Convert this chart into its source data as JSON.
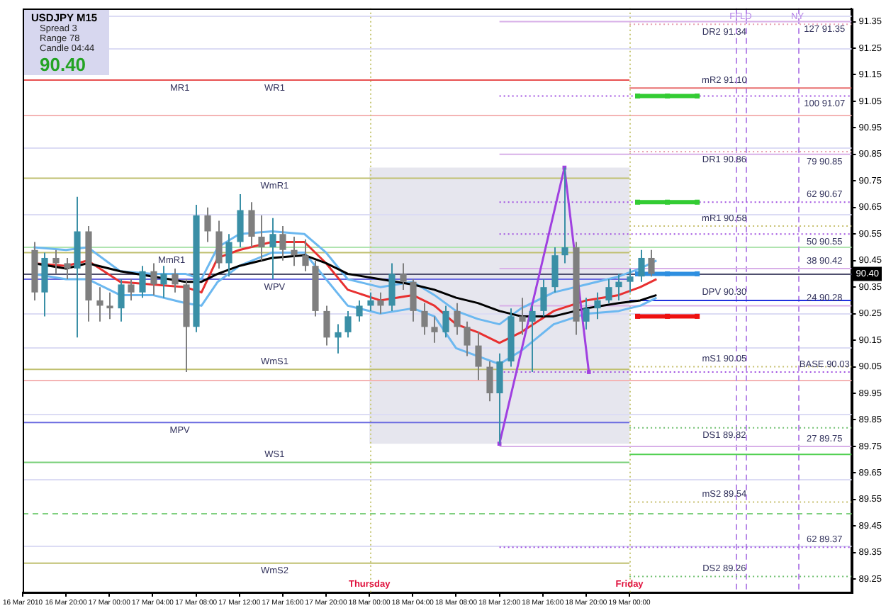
{
  "chart_data": {
    "type": "candlestick",
    "title": "USDJPY M15",
    "annotations": [
      "Spread 3",
      "Range 78",
      "Candle 04:44",
      "90.40",
      {
        "text": "MR1",
        "x": "2010-03-17T06:30",
        "y": 91.13
      },
      {
        "text": "WR1",
        "x": "2010-03-17T15:15",
        "y": 91.13
      },
      {
        "text": "WmR1",
        "x": "2010-03-17T15:15",
        "y": 90.76
      },
      {
        "text": "MmR1",
        "x": "2010-03-17T05:45",
        "y": 90.48
      },
      {
        "text": "WPV",
        "x": "2010-03-17T15:15",
        "y": 90.38
      },
      {
        "text": "WmS1",
        "x": "2010-03-17T15:15",
        "y": 90.04
      },
      {
        "text": "MPV",
        "x": "2010-03-17T06:30",
        "y": 89.84
      },
      {
        "text": "WS1",
        "x": "2010-03-17T15:15",
        "y": 89.69
      },
      {
        "text": "WmS2",
        "x": "2010-03-17T15:15",
        "y": 89.31
      },
      {
        "text": "DR2 91.34",
        "x": "2010-03-19T08:45",
        "y": 91.34
      },
      {
        "text": "mR2 91.10",
        "x": "2010-03-19T08:45",
        "y": 91.1
      },
      {
        "text": "DR1 90.86",
        "x": "2010-03-19T08:45",
        "y": 90.86
      },
      {
        "text": "mR1 90.58",
        "x": "2010-03-19T08:45",
        "y": 90.58
      },
      {
        "text": "DPV 90.30",
        "x": "2010-03-19T08:45",
        "y": 90.3
      },
      {
        "text": "mS1 90.05",
        "x": "2010-03-19T08:45",
        "y": 90.05
      },
      {
        "text": "DS1 89.82",
        "x": "2010-03-19T08:45",
        "y": 89.82
      },
      {
        "text": "mS2 89.54",
        "x": "2010-03-19T08:45",
        "y": 89.54
      },
      {
        "text": "DS2 89.26",
        "x": "2010-03-19T08:45",
        "y": 89.26
      },
      {
        "text": "127 91.35",
        "x": "2010-03-19T18:00",
        "y": 91.35
      },
      {
        "text": "100 91.07",
        "x": "2010-03-19T18:00",
        "y": 91.07
      },
      {
        "text": "79 90.85",
        "x": "2010-03-19T18:00",
        "y": 90.85
      },
      {
        "text": "62 90.67",
        "x": "2010-03-19T18:00",
        "y": 90.67
      },
      {
        "text": "50 90.55",
        "x": "2010-03-19T18:00",
        "y": 90.55
      },
      {
        "text": "38 90.42",
        "x": "2010-03-19T18:00",
        "y": 90.42
      },
      {
        "text": "24 90.28",
        "x": "2010-03-19T18:00",
        "y": 90.28
      },
      {
        "text": "BASE 90.03",
        "x": "2010-03-19T18:00",
        "y": 90.03
      },
      {
        "text": "27 89.75",
        "x": "2010-03-19T18:00",
        "y": 89.75
      },
      {
        "text": "62 89.37",
        "x": "2010-03-19T18:00",
        "y": 89.37
      }
    ],
    "x": [
      "2010-03-16T17:00",
      "2010-03-16T18:00",
      "2010-03-16T19:00",
      "2010-03-16T20:00",
      "2010-03-16T21:00",
      "2010-03-16T22:00",
      "2010-03-16T23:00",
      "2010-03-17T00:00",
      "2010-03-17T01:00",
      "2010-03-17T02:00",
      "2010-03-17T03:00",
      "2010-03-17T04:00",
      "2010-03-17T05:00",
      "2010-03-17T06:00",
      "2010-03-17T07:00",
      "2010-03-17T08:00",
      "2010-03-17T09:00",
      "2010-03-17T10:00",
      "2010-03-17T11:00",
      "2010-03-17T12:00",
      "2010-03-17T13:00",
      "2010-03-17T14:00",
      "2010-03-17T15:00",
      "2010-03-17T16:00",
      "2010-03-17T17:00",
      "2010-03-17T18:00",
      "2010-03-17T19:00",
      "2010-03-17T20:00",
      "2010-03-17T21:00",
      "2010-03-17T22:00",
      "2010-03-17T23:00",
      "2010-03-18T00:00",
      "2010-03-18T01:00",
      "2010-03-18T02:00",
      "2010-03-18T03:00",
      "2010-03-18T04:00",
      "2010-03-18T05:00",
      "2010-03-18T06:00",
      "2010-03-18T07:00",
      "2010-03-18T08:00",
      "2010-03-18T09:00",
      "2010-03-18T10:00",
      "2010-03-18T11:00",
      "2010-03-18T12:00",
      "2010-03-18T13:00",
      "2010-03-18T14:00",
      "2010-03-18T15:00",
      "2010-03-18T16:00",
      "2010-03-18T17:00",
      "2010-03-18T18:00",
      "2010-03-18T19:00",
      "2010-03-18T20:00",
      "2010-03-18T21:00",
      "2010-03-18T22:00",
      "2010-03-18T23:00",
      "2010-03-19T00:00",
      "2010-03-19T01:00",
      "2010-03-19T02:00"
    ],
    "ohlc": [
      [
        90.49,
        90.52,
        90.3,
        90.33
      ],
      [
        90.33,
        90.48,
        90.24,
        90.46
      ],
      [
        90.46,
        90.49,
        90.4,
        90.44
      ],
      [
        90.44,
        90.46,
        90.38,
        90.42
      ],
      [
        90.42,
        90.69,
        90.16,
        90.56
      ],
      [
        90.56,
        90.58,
        90.22,
        90.3
      ],
      [
        90.3,
        90.35,
        90.22,
        90.28
      ],
      [
        90.28,
        90.33,
        90.23,
        90.27
      ],
      [
        90.27,
        90.38,
        90.22,
        90.36
      ],
      [
        90.36,
        90.38,
        90.3,
        90.33
      ],
      [
        90.33,
        90.43,
        90.31,
        90.41
      ],
      [
        90.41,
        90.44,
        90.32,
        90.36
      ],
      [
        90.36,
        90.43,
        90.31,
        90.4
      ],
      [
        90.4,
        90.42,
        90.33,
        90.36
      ],
      [
        90.36,
        90.38,
        90.03,
        90.2
      ],
      [
        90.2,
        90.66,
        90.18,
        90.62
      ],
      [
        90.62,
        90.65,
        90.52,
        90.56
      ],
      [
        90.56,
        90.6,
        90.42,
        90.44
      ],
      [
        90.44,
        90.55,
        90.39,
        90.52
      ],
      [
        90.52,
        90.7,
        90.5,
        90.64
      ],
      [
        90.64,
        90.67,
        90.5,
        90.54
      ],
      [
        90.54,
        90.62,
        90.45,
        90.5
      ],
      [
        90.5,
        90.61,
        90.38,
        90.55
      ],
      [
        90.55,
        90.58,
        90.45,
        90.49
      ],
      [
        90.49,
        90.54,
        90.43,
        90.47
      ],
      [
        90.47,
        90.53,
        90.41,
        90.43
      ],
      [
        90.43,
        90.45,
        90.24,
        90.26
      ],
      [
        90.26,
        90.28,
        90.13,
        90.16
      ],
      [
        90.16,
        90.21,
        90.1,
        90.18
      ],
      [
        90.18,
        90.26,
        90.16,
        90.24
      ],
      [
        90.24,
        90.3,
        90.22,
        90.28
      ],
      [
        90.28,
        90.33,
        90.26,
        90.3
      ],
      [
        90.3,
        90.33,
        90.25,
        90.28
      ],
      [
        90.28,
        90.44,
        90.26,
        90.4
      ],
      [
        90.4,
        90.44,
        90.34,
        90.37
      ],
      [
        90.37,
        90.38,
        90.22,
        90.26
      ],
      [
        90.26,
        90.29,
        90.17,
        90.2
      ],
      [
        90.2,
        90.24,
        90.14,
        90.18
      ],
      [
        90.18,
        90.28,
        90.16,
        90.26
      ],
      [
        90.26,
        90.29,
        90.17,
        90.2
      ],
      [
        90.2,
        90.22,
        90.09,
        90.13
      ],
      [
        90.13,
        90.18,
        90.0,
        90.05
      ],
      [
        90.05,
        90.07,
        89.92,
        89.95
      ],
      [
        89.95,
        90.1,
        89.76,
        90.07
      ],
      [
        90.07,
        90.27,
        90.05,
        90.24
      ],
      [
        90.24,
        90.31,
        90.17,
        90.22
      ],
      [
        90.22,
        90.28,
        90.03,
        90.26
      ],
      [
        90.26,
        90.38,
        90.24,
        90.35
      ],
      [
        90.35,
        90.5,
        90.33,
        90.47
      ],
      [
        90.47,
        90.8,
        90.44,
        90.5
      ],
      [
        90.5,
        90.52,
        90.17,
        90.22
      ],
      [
        90.22,
        90.31,
        90.19,
        90.27
      ],
      [
        90.27,
        90.33,
        90.23,
        90.3
      ],
      [
        90.3,
        90.38,
        90.29,
        90.35
      ],
      [
        90.35,
        90.4,
        90.3,
        90.37
      ],
      [
        90.37,
        90.42,
        90.33,
        90.39
      ],
      [
        90.39,
        90.49,
        90.37,
        90.46
      ],
      [
        90.46,
        90.49,
        90.39,
        90.4
      ]
    ],
    "colors": [
      "#7f7f7f",
      "#3a8fa6",
      "#7f7f7f",
      "#7f7f7f",
      "#3a8fa6",
      "#7f7f7f",
      "#7f7f7f",
      "#7f7f7f",
      "#3a8fa6",
      "#7f7f7f",
      "#3a8fa6",
      "#7f7f7f",
      "#3a8fa6",
      "#7f7f7f",
      "#7f7f7f",
      "#3a8fa6",
      "#7f7f7f",
      "#7f7f7f",
      "#3a8fa6",
      "#3a8fa6",
      "#7f7f7f",
      "#7f7f7f",
      "#3a8fa6",
      "#7f7f7f",
      "#7f7f7f",
      "#7f7f7f",
      "#7f7f7f",
      "#7f7f7f",
      "#3a8fa6",
      "#3a8fa6",
      "#3a8fa6",
      "#3a8fa6",
      "#7f7f7f",
      "#3a8fa6",
      "#7f7f7f",
      "#7f7f7f",
      "#7f7f7f",
      "#7f7f7f",
      "#3a8fa6",
      "#7f7f7f",
      "#7f7f7f",
      "#7f7f7f",
      "#7f7f7f",
      "#3a8fa6",
      "#3a8fa6",
      "#7f7f7f",
      "#3a8fa6",
      "#3a8fa6",
      "#3a8fa6",
      "#3a8fa6",
      "#7f7f7f",
      "#3a8fa6",
      "#3a8fa6",
      "#3a8fa6",
      "#3a8fa6",
      "#3a8fa6",
      "#3a8fa6",
      "#7f7f7f"
    ],
    "series": [
      {
        "type": "line",
        "color": "#e85050",
        "x": [
          "2010-03-16T16:00",
          "2010-03-19T00:00"
        ],
        "values": [
          91.13,
          91.13
        ]
      },
      {
        "type": "line",
        "color": "#c0c070",
        "x": [
          "2010-03-16T16:00",
          "2010-03-19T00:00"
        ],
        "values": [
          90.76,
          90.76
        ]
      },
      {
        "type": "line",
        "color": "#c0c070",
        "x": [
          "2010-03-16T16:00",
          "2010-03-19T00:00"
        ],
        "values": [
          90.48,
          90.48
        ]
      },
      {
        "type": "line",
        "color": "#6a6ae0",
        "x": [
          "2010-03-16T16:00",
          "2010-03-19T00:00"
        ],
        "values": [
          90.38,
          90.38
        ]
      },
      {
        "type": "line",
        "color": "#c0c070",
        "x": [
          "2010-03-16T16:00",
          "2010-03-19T00:00"
        ],
        "values": [
          90.04,
          90.04
        ]
      },
      {
        "type": "line",
        "color": "#6a6ae0",
        "x": [
          "2010-03-16T16:00",
          "2010-03-19T00:00"
        ],
        "values": [
          89.84,
          89.84
        ]
      },
      {
        "type": "line",
        "color": "#7ad07a",
        "x": [
          "2010-03-16T16:00",
          "2010-03-19T00:00"
        ],
        "values": [
          89.69,
          89.69
        ]
      },
      {
        "type": "line",
        "color": "#c0c070",
        "x": [
          "2010-03-16T16:00",
          "2010-03-19T00:00"
        ],
        "values": [
          89.31,
          89.31
        ]
      },
      {
        "type": "line",
        "color": "#e8a0b0",
        "line_style": "dotted",
        "x": [
          "2010-03-19T00:00",
          "2010-03-19T20:30"
        ],
        "values": [
          91.34,
          91.34
        ]
      },
      {
        "type": "line",
        "color": "#e87070",
        "x": [
          "2010-03-19T00:00",
          "2010-03-19T20:30"
        ],
        "values": [
          91.1,
          91.1
        ]
      },
      {
        "type": "line",
        "color": "#e8a0b0",
        "line_style": "dotted",
        "x": [
          "2010-03-19T00:00",
          "2010-03-19T20:30"
        ],
        "values": [
          90.86,
          90.86
        ]
      },
      {
        "type": "line",
        "color": "#c8c070",
        "line_style": "dotted",
        "x": [
          "2010-03-19T00:00",
          "2010-03-19T20:30"
        ],
        "values": [
          90.58,
          90.58
        ]
      },
      {
        "type": "line",
        "color": "#2030e0",
        "x": [
          "2010-03-19T00:00",
          "2010-03-19T20:30"
        ],
        "values": [
          90.3,
          90.3
        ]
      },
      {
        "type": "line",
        "color": "#c8c070",
        "line_style": "dotted",
        "x": [
          "2010-03-19T00:00",
          "2010-03-19T20:30"
        ],
        "values": [
          90.05,
          90.05
        ]
      },
      {
        "type": "line",
        "color": "#70c070",
        "line_style": "dotted",
        "x": [
          "2010-03-19T00:00",
          "2010-03-19T20:30"
        ],
        "values": [
          89.82,
          89.82
        ]
      },
      {
        "type": "line",
        "color": "#50d050",
        "x": [
          "2010-03-19T00:00",
          "2010-03-19T20:30"
        ],
        "values": [
          89.72,
          89.72
        ]
      },
      {
        "type": "line",
        "color": "#c8c070",
        "line_style": "dotted",
        "x": [
          "2010-03-19T00:00",
          "2010-03-19T20:30"
        ],
        "values": [
          89.54,
          89.54
        ]
      },
      {
        "type": "line",
        "color": "#70c070",
        "line_style": "dotted",
        "x": [
          "2010-03-19T00:00",
          "2010-03-19T20:30"
        ],
        "values": [
          89.26,
          89.26
        ]
      },
      {
        "type": "line",
        "color": "#d8b0e8",
        "x": [
          "2010-03-18T12:00",
          "2010-03-19T20:30"
        ],
        "values": [
          91.35,
          91.35
        ]
      },
      {
        "type": "line",
        "color": "#a050e0",
        "line_style": "dotted",
        "x": [
          "2010-03-18T12:00",
          "2010-03-19T20:30"
        ],
        "values": [
          91.07,
          91.07
        ]
      },
      {
        "type": "line",
        "color": "#d8b0e8",
        "x": [
          "2010-03-18T12:00",
          "2010-03-19T20:30"
        ],
        "values": [
          90.85,
          90.85
        ]
      },
      {
        "type": "line",
        "color": "#a050e0",
        "line_style": "dotted",
        "x": [
          "2010-03-18T12:00",
          "2010-03-19T20:30"
        ],
        "values": [
          90.67,
          90.67
        ]
      },
      {
        "type": "line",
        "color": "#a050e0",
        "line_style": "dotted",
        "x": [
          "2010-03-18T12:00",
          "2010-03-19T20:30"
        ],
        "values": [
          90.55,
          90.55
        ]
      },
      {
        "type": "line",
        "color": "#d8b0e8",
        "x": [
          "2010-03-18T12:00",
          "2010-03-19T20:30"
        ],
        "values": [
          90.42,
          90.42
        ]
      },
      {
        "type": "line",
        "color": "#d8b0e8",
        "x": [
          "2010-03-18T12:00",
          "2010-03-19T20:30"
        ],
        "values": [
          90.28,
          90.28
        ]
      },
      {
        "type": "line",
        "color": "#a050e0",
        "line_style": "dotted",
        "x": [
          "2010-03-18T12:00",
          "2010-03-19T20:30"
        ],
        "values": [
          90.03,
          90.03
        ]
      },
      {
        "type": "line",
        "color": "#d8b0e8",
        "x": [
          "2010-03-18T12:00",
          "2010-03-19T20:30"
        ],
        "values": [
          89.75,
          89.75
        ]
      },
      {
        "type": "line",
        "color": "#a050e0",
        "line_style": "dotted",
        "x": [
          "2010-03-18T12:00",
          "2010-03-19T20:30"
        ],
        "values": [
          89.37,
          89.37
        ]
      },
      {
        "type": "line",
        "color": "#6cb8f0",
        "x": [
          "2010-03-16T17:00",
          "2010-03-16T20:00",
          "2010-03-16T22:00",
          "2010-03-17T01:00",
          "2010-03-17T04:00",
          "2010-03-17T07:00",
          "2010-03-17T08:30",
          "2010-03-17T10:00",
          "2010-03-17T12:00",
          "2010-03-17T15:00",
          "2010-03-17T18:00",
          "2010-03-17T20:00",
          "2010-03-17T22:00",
          "2010-03-18T01:00",
          "2010-03-18T04:00",
          "2010-03-18T06:00",
          "2010-03-18T08:00",
          "2010-03-18T10:00",
          "2010-03-18T12:00",
          "2010-03-18T14:00",
          "2010-03-18T17:00",
          "2010-03-18T20:00",
          "2010-03-18T23:00",
          "2010-03-19T01:00",
          "2010-03-19T02:30"
        ],
        "values": [
          90.5,
          90.49,
          90.5,
          90.41,
          90.4,
          90.4,
          90.38,
          90.5,
          90.55,
          90.56,
          90.55,
          90.48,
          90.38,
          90.35,
          90.37,
          90.32,
          90.26,
          90.23,
          90.21,
          90.27,
          90.33,
          90.36,
          90.39,
          90.42,
          90.45
        ]
      },
      {
        "type": "line",
        "color": "#6cb8f0",
        "x": [
          "2010-03-16T17:00",
          "2010-03-16T20:00",
          "2010-03-16T22:00",
          "2010-03-17T01:00",
          "2010-03-17T04:00",
          "2010-03-17T07:00",
          "2010-03-17T08:30",
          "2010-03-17T10:00",
          "2010-03-17T12:00",
          "2010-03-17T15:00",
          "2010-03-17T18:00",
          "2010-03-17T20:00",
          "2010-03-17T22:00",
          "2010-03-18T01:00",
          "2010-03-18T04:00",
          "2010-03-18T06:00",
          "2010-03-18T08:00",
          "2010-03-18T10:00",
          "2010-03-18T12:00",
          "2010-03-18T14:00",
          "2010-03-18T17:00",
          "2010-03-18T20:00",
          "2010-03-18T23:00",
          "2010-03-19T01:00",
          "2010-03-19T02:30"
        ],
        "values": [
          90.4,
          90.38,
          90.38,
          90.32,
          90.32,
          90.29,
          90.28,
          90.37,
          90.43,
          90.48,
          90.48,
          90.38,
          90.28,
          90.25,
          90.27,
          90.24,
          90.12,
          90.09,
          90.06,
          90.11,
          90.21,
          90.25,
          90.26,
          90.28,
          90.31
        ]
      },
      {
        "type": "line",
        "color": "#e83030",
        "x": [
          "2010-03-16T17:00",
          "2010-03-16T20:00",
          "2010-03-16T22:00",
          "2010-03-17T01:00",
          "2010-03-17T04:00",
          "2010-03-17T07:00",
          "2010-03-17T08:30",
          "2010-03-17T10:00",
          "2010-03-17T12:00",
          "2010-03-17T15:00",
          "2010-03-17T18:00",
          "2010-03-17T20:00",
          "2010-03-17T22:00",
          "2010-03-18T01:00",
          "2010-03-18T04:00",
          "2010-03-18T06:00",
          "2010-03-18T08:00",
          "2010-03-18T10:00",
          "2010-03-18T12:00",
          "2010-03-18T14:00",
          "2010-03-18T17:00",
          "2010-03-18T20:00",
          "2010-03-18T23:00",
          "2010-03-19T01:00",
          "2010-03-19T02:30"
        ],
        "values": [
          90.44,
          90.43,
          90.45,
          90.37,
          90.36,
          90.35,
          90.33,
          90.46,
          90.49,
          90.52,
          90.52,
          90.44,
          90.34,
          90.3,
          90.32,
          90.28,
          90.21,
          90.18,
          90.14,
          90.18,
          90.26,
          90.3,
          90.32,
          90.35,
          90.38
        ]
      },
      {
        "type": "line",
        "color": "#000000",
        "x": [
          "2010-03-16T17:00",
          "2010-03-16T20:00",
          "2010-03-16T22:00",
          "2010-03-17T01:00",
          "2010-03-17T04:00",
          "2010-03-17T07:00",
          "2010-03-17T08:30",
          "2010-03-17T10:00",
          "2010-03-17T12:00",
          "2010-03-17T15:00",
          "2010-03-17T18:00",
          "2010-03-17T20:00",
          "2010-03-17T22:00",
          "2010-03-18T01:00",
          "2010-03-18T04:00",
          "2010-03-18T06:00",
          "2010-03-18T08:00",
          "2010-03-18T10:00",
          "2010-03-18T12:00",
          "2010-03-18T14:00",
          "2010-03-18T17:00",
          "2010-03-18T20:00",
          "2010-03-18T23:00",
          "2010-03-19T01:00",
          "2010-03-19T02:30"
        ],
        "values": [
          90.44,
          90.42,
          90.44,
          90.41,
          90.39,
          90.37,
          90.37,
          90.4,
          90.43,
          90.46,
          90.47,
          90.44,
          90.4,
          90.38,
          90.36,
          90.34,
          90.31,
          90.29,
          90.26,
          90.24,
          90.24,
          90.27,
          90.29,
          90.3,
          90.32
        ]
      },
      {
        "type": "line",
        "color": "#a040e0",
        "marker": "square",
        "x": [
          "2010-03-18T12:00",
          "2010-03-18T18:00",
          "2010-03-18T20:15"
        ],
        "values": [
          89.76,
          90.8,
          90.03
        ]
      },
      {
        "type": "line",
        "color": "#33cc33",
        "marker": "square",
        "x": [
          "2010-03-19T00:45",
          "2010-03-19T03:30",
          "2010-03-19T06:15"
        ],
        "values": [
          91.07,
          91.07,
          91.07
        ]
      },
      {
        "type": "line",
        "color": "#33cc33",
        "marker": "square",
        "x": [
          "2010-03-19T00:45",
          "2010-03-19T03:30",
          "2010-03-19T06:15"
        ],
        "values": [
          90.67,
          90.67,
          90.67
        ]
      },
      {
        "type": "line",
        "color": "#2e8fe0",
        "marker": "square",
        "x": [
          "2010-03-19T00:45",
          "2010-03-19T03:30",
          "2010-03-19T06:15"
        ],
        "values": [
          90.4,
          90.4,
          90.4
        ]
      },
      {
        "type": "line",
        "color": "#ee1111",
        "marker": "square",
        "x": [
          "2010-03-19T00:45",
          "2010-03-19T03:30",
          "2010-03-19T06:15"
        ],
        "values": [
          90.24,
          90.24,
          90.24
        ]
      }
    ],
    "xlim": [
      "2010-03-16T16:00",
      "2010-03-19T20:30"
    ],
    "xticks": [
      {
        "value": "2010-03-16T16:00",
        "label": "16 Mar 2010"
      },
      {
        "value": "2010-03-16T20:00",
        "label": "16 Mar 20:00"
      },
      {
        "value": "2010-03-17T00:00",
        "label": "17 Mar 00:00"
      },
      {
        "value": "2010-03-17T04:00",
        "label": "17 Mar 04:00"
      },
      {
        "value": "2010-03-17T08:00",
        "label": "17 Mar 08:00"
      },
      {
        "value": "2010-03-17T12:00",
        "label": "17 Mar 12:00"
      },
      {
        "value": "2010-03-17T16:00",
        "label": "17 Mar 16:00"
      },
      {
        "value": "2010-03-17T20:00",
        "label": "17 Mar 20:00"
      },
      {
        "value": "2010-03-18T00:00",
        "label": "18 Mar 00:00"
      },
      {
        "value": "2010-03-18T04:00",
        "label": "18 Mar 04:00"
      },
      {
        "value": "2010-03-18T08:00",
        "label": "18 Mar 08:00"
      },
      {
        "value": "2010-03-18T12:00",
        "label": "18 Mar 12:00"
      },
      {
        "value": "2010-03-18T16:00",
        "label": "18 Mar 16:00"
      },
      {
        "value": "2010-03-18T20:00",
        "label": "18 Mar 20:00"
      },
      {
        "value": "2010-03-19T00:00",
        "label": "19 Mar 00:00"
      }
    ],
    "ylim": [
      89.2,
      91.4
    ],
    "yticks": [
      89.25,
      89.35,
      89.45,
      89.55,
      89.65,
      89.75,
      89.85,
      89.95,
      90.05,
      90.15,
      90.25,
      90.35,
      90.45,
      90.55,
      90.65,
      90.75,
      90.85,
      90.95,
      91.05,
      91.15,
      91.25,
      91.35
    ],
    "ref_lines": [
      {
        "axis": "y",
        "value": 91.375,
        "color": "#dcdcf4"
      },
      {
        "axis": "y",
        "value": 91.25,
        "color": "#dcdcf4"
      },
      {
        "axis": "y",
        "value": 91.0,
        "color": "#f4b4b4"
      },
      {
        "axis": "y",
        "value": 90.875,
        "color": "#dcdcf4"
      },
      {
        "axis": "y",
        "value": 90.625,
        "color": "#dcdcf4"
      },
      {
        "axis": "y",
        "value": 90.5,
        "color": "#b0e4b0"
      },
      {
        "axis": "y",
        "value": 90.25,
        "color": "#dcdcf4"
      },
      {
        "axis": "y",
        "value": 90.125,
        "color": "#dcdcf4"
      },
      {
        "axis": "y",
        "value": 90.0,
        "color": "#f4b4b4"
      },
      {
        "axis": "y",
        "value": 89.875,
        "color": "#dcdcf4"
      },
      {
        "axis": "y",
        "value": 89.625,
        "color": "#dcdcf4"
      },
      {
        "axis": "y",
        "value": 89.5,
        "color": "#80d080",
        "line_style": "dashed"
      },
      {
        "axis": "y",
        "value": 89.375,
        "color": "#dcdcf4"
      },
      {
        "axis": "y",
        "value": 90.4,
        "label": "90.40",
        "color": "#50506e"
      },
      {
        "axis": "x",
        "value": "2010-03-18T00:00",
        "label": "Thursday",
        "color": "#c8c878",
        "line_style": "dotted"
      },
      {
        "axis": "x",
        "value": "2010-03-19T00:00",
        "label": "Friday",
        "color": "#c8c878",
        "line_style": "dotted"
      },
      {
        "axis": "x",
        "value": "2010-03-19T09:45",
        "label": "FF",
        "color": "#b888e8",
        "line_style": "dashed"
      },
      {
        "axis": "x",
        "value": "2010-03-19T10:45",
        "label": "LD",
        "color": "#b888e8",
        "line_style": "dashed"
      },
      {
        "axis": "x",
        "value": "2010-03-19T15:30",
        "label": "NY",
        "color": "#b888e8",
        "line_style": "dashed"
      }
    ],
    "bands": [
      {
        "axis": "x",
        "from": "2010-03-18T00:00",
        "to": "2010-03-19T00:00",
        "color": "#e6e6ee"
      }
    ]
  }
}
